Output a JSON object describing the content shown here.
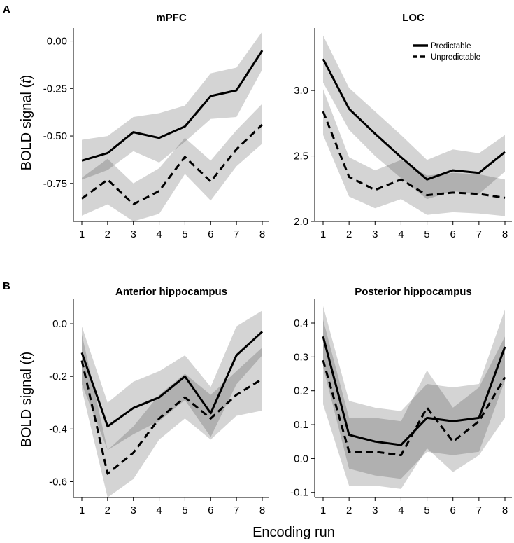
{
  "figure": {
    "panel_labels": [
      "A",
      "B"
    ],
    "ylabel_main": "BOLD signal (",
    "ylabel_italic": "t",
    "ylabel_close": ")",
    "xlabel": "Encoding run",
    "legend": [
      "Predictable",
      "Unpredictable"
    ]
  },
  "chart_data": [
    {
      "type": "line",
      "title": "mPFC",
      "x": [
        1,
        2,
        3,
        4,
        5,
        6,
        7,
        8
      ],
      "ylim": [
        -0.95,
        0.05
      ],
      "yticks": [
        0.0,
        -0.25,
        -0.5,
        -0.75
      ],
      "ytick_labels": [
        "0.00",
        "-0.25",
        "-0.50",
        "-0.75"
      ],
      "series": [
        {
          "name": "Predictable",
          "values": [
            -0.63,
            -0.59,
            -0.48,
            -0.51,
            -0.45,
            -0.29,
            -0.26,
            -0.05
          ],
          "lower": [
            -0.73,
            -0.68,
            -0.58,
            -0.64,
            -0.53,
            -0.41,
            -0.4,
            -0.15
          ],
          "upper": [
            -0.52,
            -0.5,
            -0.4,
            -0.38,
            -0.34,
            -0.17,
            -0.14,
            0.05
          ]
        },
        {
          "name": "Unpredictable",
          "values": [
            -0.83,
            -0.73,
            -0.86,
            -0.79,
            -0.61,
            -0.74,
            -0.57,
            -0.44
          ],
          "lower": [
            -0.92,
            -0.86,
            -0.95,
            -0.91,
            -0.7,
            -0.84,
            -0.66,
            -0.54
          ],
          "upper": [
            -0.72,
            -0.62,
            -0.75,
            -0.67,
            -0.51,
            -0.63,
            -0.47,
            -0.33
          ]
        }
      ]
    },
    {
      "type": "line",
      "title": "LOC",
      "x": [
        1,
        2,
        3,
        4,
        5,
        6,
        7,
        8
      ],
      "ylim": [
        2.0,
        3.45
      ],
      "yticks": [
        3.0,
        2.5,
        2.0
      ],
      "ytick_labels": [
        "3.0",
        "2.5",
        "2.0"
      ],
      "legend_position": "top-right",
      "series": [
        {
          "name": "Predictable",
          "values": [
            3.24,
            2.86,
            2.67,
            2.49,
            2.32,
            2.39,
            2.37,
            2.53
          ],
          "lower": [
            3.06,
            2.7,
            2.5,
            2.33,
            2.17,
            2.23,
            2.21,
            2.38
          ],
          "upper": [
            3.42,
            3.02,
            2.84,
            2.66,
            2.47,
            2.55,
            2.52,
            2.66
          ]
        },
        {
          "name": "Unpredictable",
          "values": [
            2.84,
            2.34,
            2.24,
            2.32,
            2.2,
            2.22,
            2.21,
            2.18
          ],
          "lower": [
            2.66,
            2.19,
            2.1,
            2.17,
            2.05,
            2.07,
            2.06,
            2.04
          ],
          "upper": [
            3.01,
            2.49,
            2.39,
            2.47,
            2.35,
            2.37,
            2.36,
            2.32
          ]
        }
      ]
    },
    {
      "type": "line",
      "title": "Anterior hippocampus",
      "x": [
        1,
        2,
        3,
        4,
        5,
        6,
        7,
        8
      ],
      "ylim": [
        -0.66,
        0.08
      ],
      "yticks": [
        0.0,
        -0.2,
        -0.4,
        -0.6
      ],
      "ytick_labels": [
        "0.0",
        "-0.2",
        "-0.4",
        "-0.6"
      ],
      "series": [
        {
          "name": "Predictable",
          "values": [
            -0.11,
            -0.39,
            -0.32,
            -0.28,
            -0.2,
            -0.34,
            -0.12,
            -0.03
          ],
          "lower": [
            -0.23,
            -0.48,
            -0.42,
            -0.37,
            -0.29,
            -0.43,
            -0.23,
            -0.12
          ],
          "upper": [
            -0.01,
            -0.3,
            -0.22,
            -0.18,
            -0.12,
            -0.24,
            -0.01,
            0.05
          ]
        },
        {
          "name": "Unpredictable",
          "values": [
            -0.14,
            -0.57,
            -0.49,
            -0.36,
            -0.28,
            -0.36,
            -0.27,
            -0.21
          ],
          "lower": [
            -0.25,
            -0.66,
            -0.59,
            -0.44,
            -0.36,
            -0.44,
            -0.35,
            -0.33
          ],
          "upper": [
            -0.04,
            -0.48,
            -0.39,
            -0.27,
            -0.19,
            -0.27,
            -0.18,
            -0.09
          ]
        }
      ]
    },
    {
      "type": "line",
      "title": "Posterior hippocampus",
      "x": [
        1,
        2,
        3,
        4,
        5,
        6,
        7,
        8
      ],
      "ylim": [
        -0.115,
        0.46
      ],
      "yticks": [
        0.4,
        0.3,
        0.2,
        0.1,
        0.0,
        -0.1
      ],
      "ytick_labels": [
        "0.4",
        "0.3",
        "0.2",
        "0.1",
        "0.0",
        "-0.1"
      ],
      "series": [
        {
          "name": "Predictable",
          "values": [
            0.36,
            0.07,
            0.05,
            0.04,
            0.12,
            0.11,
            0.12,
            0.33
          ],
          "lower": [
            0.27,
            -0.03,
            -0.05,
            -0.06,
            0.02,
            0.01,
            0.02,
            0.23
          ],
          "upper": [
            0.45,
            0.17,
            0.15,
            0.14,
            0.22,
            0.21,
            0.22,
            0.44
          ]
        },
        {
          "name": "Unpredictable",
          "values": [
            0.29,
            0.02,
            0.02,
            0.01,
            0.15,
            0.05,
            0.11,
            0.24
          ],
          "lower": [
            0.16,
            -0.08,
            -0.08,
            -0.09,
            0.03,
            -0.04,
            0.01,
            0.12
          ],
          "upper": [
            0.41,
            0.12,
            0.12,
            0.11,
            0.26,
            0.15,
            0.21,
            0.36
          ]
        }
      ]
    }
  ]
}
